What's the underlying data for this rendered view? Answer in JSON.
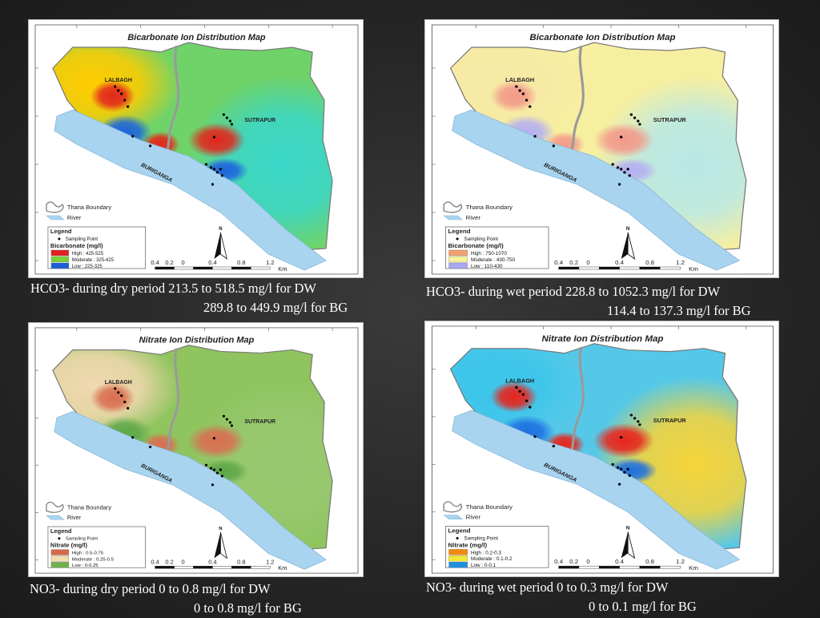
{
  "panels": [
    {
      "id": "hco3-dry",
      "title": "Bicarbonate Ion Distribution Map",
      "legend_param": "Bicarbonate (mg/l)",
      "classes": [
        {
          "label": "High : 425-525",
          "color": "#e02020"
        },
        {
          "label": "Moderate : 325-425",
          "color": "#7ad13b"
        },
        {
          "label": "Low : 225-325",
          "color": "#1e5fd8"
        }
      ],
      "palette": {
        "base": "#6fd36a",
        "east": "#3ad6c8",
        "west": "#ffcc00",
        "hot": "#e3261b",
        "cool": "#1e64dc"
      },
      "caption_line1": "HCO3- during dry period  213.5 to 518.5 mg/l for DW",
      "caption_line2": "289.8 to 449.9 mg/l for BG"
    },
    {
      "id": "hco3-wet",
      "title": "Bicarbonate Ion Distribution Map",
      "legend_param": "Bicarbonate (mg/l)",
      "classes": [
        {
          "label": "High : 750-1070",
          "color": "#f4a070"
        },
        {
          "label": "Moderate : 430-750",
          "color": "#f8f29a"
        },
        {
          "label": "Low : 110-430",
          "color": "#a8a8f0"
        }
      ],
      "palette": {
        "base": "#f7efa0",
        "east": "#b8e8e6",
        "west": "#f7e9a6",
        "hot": "#f39a8a",
        "cool": "#b5b0f2"
      },
      "caption_line1": "HCO3- during wet period  228.8 to 1052.3 mg/l for DW",
      "caption_line2": "114.4 to 137.3 mg/l for BG"
    },
    {
      "id": "no3-dry",
      "title": "Nitrate Ion Distribution Map",
      "legend_param": "Nitrate (mg/l)",
      "classes": [
        {
          "label": "High : 0.5-0.75",
          "color": "#d9684a"
        },
        {
          "label": "Moderate : 0.25-0.5",
          "color": "#f2dcb0"
        },
        {
          "label": "Low : 0-0.25",
          "color": "#6fb04a"
        }
      ],
      "palette": {
        "base": "#8fc45e",
        "east": "#98c870",
        "west": "#f2d8b0",
        "hot": "#d96f52",
        "cool": "#5ea84a"
      },
      "caption_line1": "NO3- during dry period 0 to 0.8 mg/l for DW",
      "caption_line2": "0 to 0.8 mg/l for BG"
    },
    {
      "id": "no3-wet",
      "title": "Nitrate Ion Distribution Map",
      "legend_param": "Nitrate (mg/l)",
      "classes": [
        {
          "label": "High : 0.2-0.3",
          "color": "#f08a10"
        },
        {
          "label": "Moderate : 0.1-0.2",
          "color": "#f2ea30"
        },
        {
          "label": "Low : 0-0.1",
          "color": "#1f8fe0"
        }
      ],
      "palette": {
        "base": "#55c8e8",
        "east": "#f7d43a",
        "west": "#3cc6ea",
        "hot": "#e8241c",
        "cool": "#1e70e0"
      },
      "caption_line1": "NO3- during wet period 0 to 0.3 mg/l for DW",
      "caption_line2": "0 to 0.1 mg/l for BG"
    }
  ],
  "map_labels": {
    "area_west": "LALBAGH",
    "area_east": "SUTRAPUR",
    "river_name": "BURIGANGA",
    "thana_boundary": "Thana Boundary",
    "river": "River",
    "legend": "Legend",
    "sampling_point": "Sampling Point",
    "north": "N",
    "scale_ticks": [
      "0.4",
      "0.2",
      "0",
      "0.4",
      "0.8",
      "1.2"
    ],
    "scale_unit": "Km"
  }
}
